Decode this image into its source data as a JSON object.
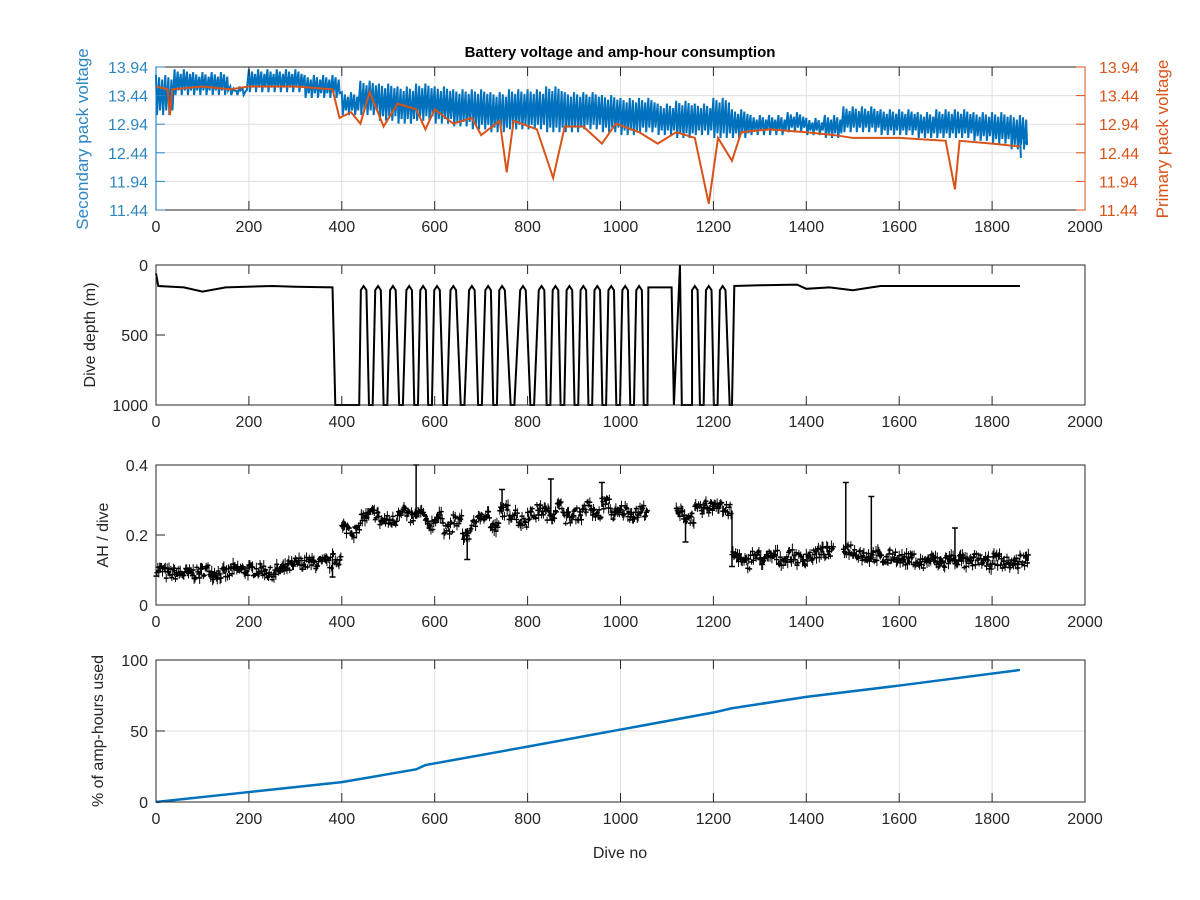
{
  "colors": {
    "blue": "#0072BD",
    "orange": "#D95319",
    "black": "#000000",
    "axis": "#262626",
    "grid": "#DFDFDF"
  },
  "chart_data": [
    {
      "type": "line",
      "title": "Battery voltage and amp-hour consumption",
      "xlabel": "",
      "ylabel_left": "Secondary pack voltage",
      "ylabel_right": "Primary pack voltage",
      "xlim": [
        0,
        2000
      ],
      "ylim": [
        11.44,
        13.94
      ],
      "xticks": [
        0,
        200,
        400,
        600,
        800,
        1000,
        1200,
        1400,
        1600,
        1800,
        2000
      ],
      "yticks": [
        "11.44",
        "11.94",
        "12.44",
        "12.94",
        "13.44",
        "13.94"
      ],
      "grid": true,
      "series": [
        {
          "name": "Secondary pack voltage",
          "color": "#0072BD",
          "x_step": 40,
          "x": [
            0,
            40,
            80,
            120,
            160,
            200,
            240,
            280,
            320,
            360,
            400,
            440,
            480,
            520,
            560,
            600,
            640,
            680,
            720,
            760,
            800,
            840,
            880,
            920,
            960,
            1000,
            1040,
            1080,
            1120,
            1160,
            1200,
            1240,
            1280,
            1320,
            1360,
            1400,
            1440,
            1480,
            1520,
            1560,
            1600,
            1640,
            1680,
            1720,
            1760,
            1800,
            1840,
            1860
          ],
          "high": [
            13.8,
            13.9,
            13.85,
            13.85,
            13.6,
            13.9,
            13.9,
            13.9,
            13.8,
            13.8,
            13.5,
            13.7,
            13.65,
            13.6,
            13.65,
            13.6,
            13.55,
            13.55,
            13.5,
            13.55,
            13.55,
            13.6,
            13.5,
            13.5,
            13.45,
            13.4,
            13.4,
            13.3,
            13.35,
            13.3,
            13.4,
            13.2,
            13.1,
            13.1,
            13.15,
            13.05,
            13.1,
            13.25,
            13.25,
            13.2,
            13.2,
            13.15,
            13.2,
            13.2,
            13.15,
            13.15,
            13.1,
            12.8
          ],
          "low": [
            13.1,
            13.45,
            13.45,
            13.45,
            13.45,
            13.5,
            13.5,
            13.5,
            13.4,
            13.4,
            13.1,
            13.1,
            13.0,
            12.95,
            13.0,
            12.95,
            12.9,
            12.85,
            12.8,
            12.85,
            12.85,
            12.8,
            12.8,
            12.85,
            12.8,
            12.75,
            12.8,
            12.75,
            12.7,
            12.75,
            12.7,
            12.7,
            12.75,
            12.75,
            12.8,
            12.75,
            12.7,
            12.8,
            12.8,
            12.75,
            12.75,
            12.7,
            12.7,
            12.7,
            12.65,
            12.6,
            12.5,
            12.35
          ]
        },
        {
          "name": "Primary pack voltage",
          "color": "#D95319",
          "axis": "right",
          "points": [
            [
              0,
              13.6
            ],
            [
              25,
              13.55
            ],
            [
              30,
              13.1
            ],
            [
              35,
              13.55
            ],
            [
              100,
              13.6
            ],
            [
              160,
              13.55
            ],
            [
              200,
              13.6
            ],
            [
              300,
              13.6
            ],
            [
              380,
              13.55
            ],
            [
              395,
              13.05
            ],
            [
              420,
              13.15
            ],
            [
              440,
              12.95
            ],
            [
              460,
              13.5
            ],
            [
              490,
              12.9
            ],
            [
              520,
              13.3
            ],
            [
              560,
              13.2
            ],
            [
              580,
              12.85
            ],
            [
              600,
              13.2
            ],
            [
              640,
              12.95
            ],
            [
              680,
              13.05
            ],
            [
              700,
              12.75
            ],
            [
              740,
              13.0
            ],
            [
              755,
              12.1
            ],
            [
              770,
              13.0
            ],
            [
              820,
              12.85
            ],
            [
              855,
              12.0
            ],
            [
              880,
              12.9
            ],
            [
              920,
              12.9
            ],
            [
              960,
              12.6
            ],
            [
              990,
              12.95
            ],
            [
              1040,
              12.8
            ],
            [
              1080,
              12.6
            ],
            [
              1120,
              12.8
            ],
            [
              1160,
              12.7
            ],
            [
              1190,
              11.55
            ],
            [
              1210,
              12.7
            ],
            [
              1240,
              12.3
            ],
            [
              1260,
              12.8
            ],
            [
              1320,
              12.85
            ],
            [
              1400,
              12.8
            ],
            [
              1460,
              12.75
            ],
            [
              1500,
              12.7
            ],
            [
              1600,
              12.7
            ],
            [
              1700,
              12.65
            ],
            [
              1720,
              11.8
            ],
            [
              1730,
              12.65
            ],
            [
              1800,
              12.6
            ],
            [
              1860,
              12.55
            ]
          ]
        }
      ]
    },
    {
      "type": "line",
      "ylabel": "Dive depth (m)",
      "xlim": [
        0,
        2000
      ],
      "ylim": [
        0,
        1000
      ],
      "y_reversed": true,
      "xticks": [
        0,
        200,
        400,
        600,
        800,
        1000,
        1200,
        1400,
        1600,
        1800,
        2000
      ],
      "yticks": [
        "0",
        "500",
        "1000"
      ],
      "grid": false,
      "series": [
        {
          "name": "Dive depth",
          "color": "#000000",
          "shallow_depth": 150,
          "deep_depth": 1000,
          "profile_start": [
            [
              0,
              60
            ],
            [
              5,
              150
            ],
            [
              60,
              160
            ],
            [
              100,
              190
            ],
            [
              150,
              160
            ],
            [
              250,
              150
            ],
            [
              300,
              155
            ],
            [
              380,
              160
            ]
          ],
          "yo_yo_shallow_peaks": [
            447,
            478,
            510,
            545,
            575,
            605,
            640,
            680,
            715,
            745,
            790,
            830,
            860,
            890,
            920,
            950,
            980,
            1010,
            1040
          ],
          "gap_segment": [
            [
              1060,
              160
            ],
            [
              1110,
              160
            ],
            [
              1115,
              1000
            ],
            [
              1128,
              0
            ],
            [
              1132,
              1000
            ],
            [
              1140,
              1000
            ]
          ],
          "yo_yo_shallow_peaks_2": [
            1160,
            1190,
            1220
          ],
          "profile_end": [
            [
              1245,
              150
            ],
            [
              1300,
              145
            ],
            [
              1380,
              140
            ],
            [
              1400,
              170
            ],
            [
              1450,
              160
            ],
            [
              1500,
              180
            ],
            [
              1540,
              160
            ],
            [
              1560,
              150
            ],
            [
              1860,
              150
            ]
          ]
        }
      ]
    },
    {
      "type": "scatter",
      "ylabel": "AH / dive",
      "xlim": [
        0,
        2000
      ],
      "ylim": [
        0,
        0.4
      ],
      "xticks": [
        0,
        200,
        400,
        600,
        800,
        1000,
        1200,
        1400,
        1600,
        1800,
        2000
      ],
      "yticks": [
        "0",
        "0.2",
        "0.4"
      ],
      "grid": false,
      "series": [
        {
          "name": "AH per dive",
          "color": "#000000",
          "x_step": 20,
          "values": [
            0.1,
            0.09,
            0.09,
            0.09,
            0.09,
            0.1,
            0.09,
            0.09,
            0.1,
            0.1,
            0.1,
            0.1,
            0.09,
            0.1,
            0.11,
            0.12,
            0.12,
            0.12,
            0.12,
            0.13,
            0.22,
            0.21,
            0.25,
            0.26,
            0.24,
            0.24,
            0.27,
            0.25,
            0.26,
            0.23,
            0.25,
            0.22,
            0.24,
            0.2,
            0.24,
            0.26,
            0.22,
            0.27,
            0.26,
            0.24,
            0.26,
            0.27,
            0.26,
            0.28,
            0.25,
            0.26,
            0.28,
            0.26,
            0.29,
            0.26,
            0.27,
            0.26,
            0.27,
            null,
            null,
            null,
            0.26,
            0.25,
            0.27,
            0.28,
            0.29,
            0.27,
            0.14,
            0.12,
            0.14,
            0.13,
            0.14,
            0.13,
            0.14,
            0.13,
            0.14,
            0.15,
            0.15,
            null,
            0.16,
            0.15,
            0.14,
            0.14,
            0.13,
            0.14,
            0.13,
            0.13,
            0.12,
            0.13,
            0.12,
            0.13,
            0.13,
            0.12,
            0.13,
            0.12,
            0.13,
            0.12,
            0.12,
            0.13
          ],
          "spikes": [
            [
              560,
              0.26,
              0.4
            ],
            [
              850,
              0.26,
              0.36
            ],
            [
              960,
              0.28,
              0.35
            ],
            [
              745,
              0.26,
              0.33
            ],
            [
              1485,
              0.16,
              0.35
            ],
            [
              1540,
              0.14,
              0.31
            ],
            [
              1720,
              0.13,
              0.22
            ],
            [
              380,
              0.13,
              0.08
            ],
            [
              670,
              0.22,
              0.13
            ],
            [
              1140,
              0.25,
              0.18
            ],
            [
              1240,
              0.27,
              0.11
            ]
          ]
        }
      ]
    },
    {
      "type": "line",
      "ylabel": "% of amp-hours used",
      "xlabel": "Dive no",
      "xlim": [
        0,
        2000
      ],
      "ylim": [
        0,
        100
      ],
      "xticks": [
        0,
        200,
        400,
        600,
        800,
        1000,
        1200,
        1400,
        1600,
        1800,
        2000
      ],
      "yticks": [
        "0",
        "50",
        "100"
      ],
      "grid": true,
      "series": [
        {
          "name": "% amp-hours used",
          "color": "#0072BD",
          "points": [
            [
              0,
              0
            ],
            [
              200,
              7
            ],
            [
              400,
              14
            ],
            [
              560,
              23
            ],
            [
              580,
              26
            ],
            [
              800,
              39
            ],
            [
              1000,
              51
            ],
            [
              1200,
              63
            ],
            [
              1240,
              66
            ],
            [
              1400,
              74
            ],
            [
              1600,
              82
            ],
            [
              1860,
              93
            ]
          ]
        }
      ]
    }
  ]
}
